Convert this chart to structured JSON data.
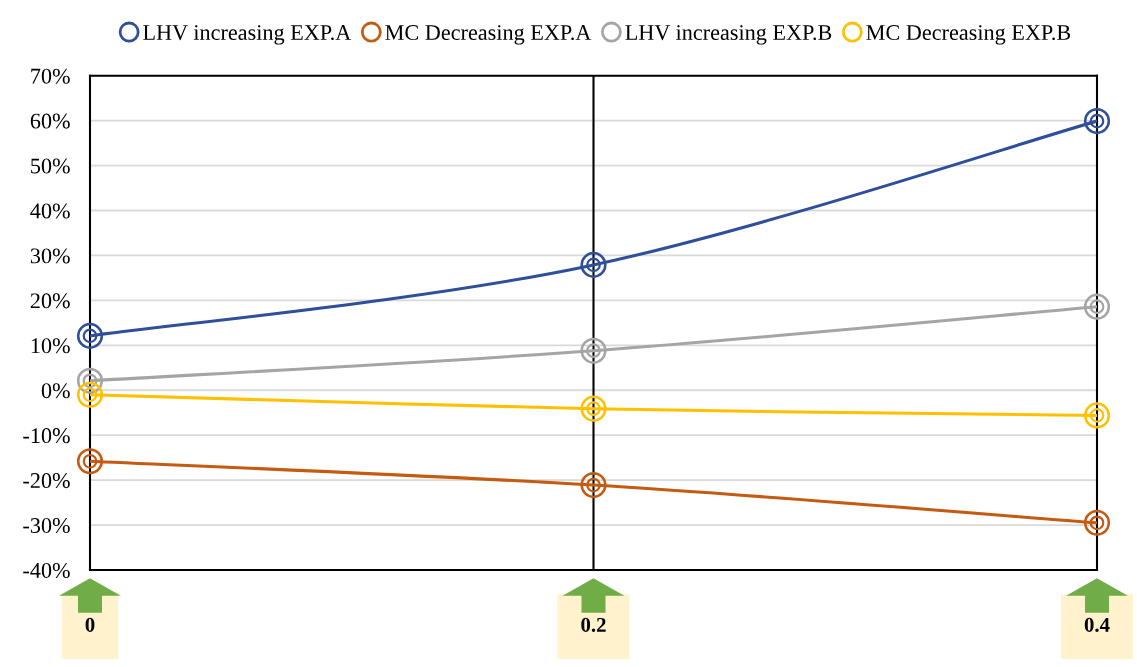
{
  "chart_data": {
    "type": "line",
    "x": [
      0,
      0.2,
      0.4
    ],
    "series": [
      {
        "name": "LHV increasing EXP.A",
        "color": "#2f4f9a",
        "values": [
          12.1,
          27.9,
          59.9
        ]
      },
      {
        "name": "MC Decreasing EXP.A",
        "color": "#c55a11",
        "values": [
          -15.8,
          -21.1,
          -29.5
        ]
      },
      {
        "name": "LHV increasing EXP.B",
        "color": "#a5a5a5",
        "values": [
          2.1,
          8.8,
          18.6
        ]
      },
      {
        "name": "MC Decreasing EXP.B",
        "color": "#ffc000",
        "values": [
          -1,
          -4.1,
          -5.6
        ]
      }
    ],
    "xlim": [
      0,
      0.4
    ],
    "xticks": [
      0,
      0.2,
      0.4
    ],
    "ylim": [
      -40,
      70
    ],
    "yticks": [
      {
        "value": -40,
        "label": "-40%"
      },
      {
        "value": -30,
        "label": "-30%"
      },
      {
        "value": -20,
        "label": "-20%"
      },
      {
        "value": -10,
        "label": "-10%"
      },
      {
        "value": 0,
        "label": "0%"
      },
      {
        "value": 10,
        "label": "10%"
      },
      {
        "value": 20,
        "label": "20%"
      },
      {
        "value": 30,
        "label": "30%"
      },
      {
        "value": 40,
        "label": "40%"
      },
      {
        "value": 50,
        "label": "50%"
      },
      {
        "value": 60,
        "label": "60%"
      },
      {
        "value": 70,
        "label": "70%"
      }
    ],
    "ref_lines": [
      {
        "axis": "x",
        "value": 0.2,
        "color": "#000000"
      }
    ],
    "grid": "y",
    "legend": "top",
    "marker": "circle",
    "line_style": "solid"
  }
}
